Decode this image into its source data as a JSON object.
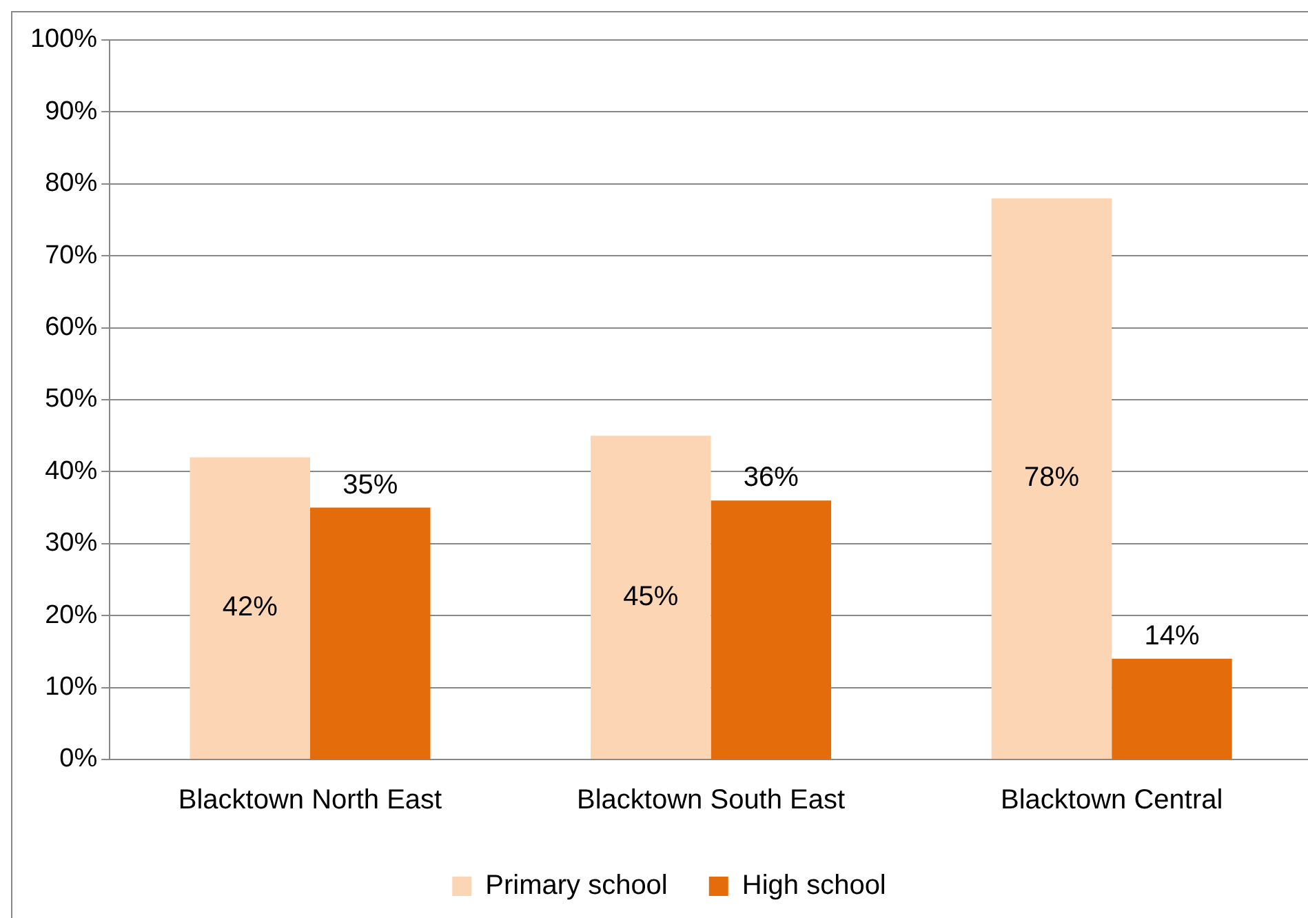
{
  "chart_data": {
    "type": "bar",
    "categories": [
      "Blacktown North East",
      "Blacktown South East",
      "Blacktown Central"
    ],
    "series": [
      {
        "name": "Primary school",
        "color": "#fcd5b5",
        "values": [
          42,
          45,
          78
        ],
        "value_labels": [
          "42%",
          "45%",
          "78%"
        ]
      },
      {
        "name": "High school",
        "color": "#e46c0a",
        "values": [
          35,
          36,
          14
        ],
        "value_labels": [
          "35%",
          "36%",
          "14%"
        ]
      }
    ],
    "ylim": [
      0,
      100
    ],
    "yticks": [
      {
        "value": 0,
        "label": "0%"
      },
      {
        "value": 10,
        "label": "10%"
      },
      {
        "value": 20,
        "label": "20%"
      },
      {
        "value": 30,
        "label": "30%"
      },
      {
        "value": 40,
        "label": "40%"
      },
      {
        "value": 50,
        "label": "50%"
      },
      {
        "value": 60,
        "label": "60%"
      },
      {
        "value": 70,
        "label": "70%"
      },
      {
        "value": 80,
        "label": "80%"
      },
      {
        "value": 90,
        "label": "90%"
      },
      {
        "value": 100,
        "label": "100%"
      }
    ],
    "grid": "y",
    "legend": "bottom"
  }
}
